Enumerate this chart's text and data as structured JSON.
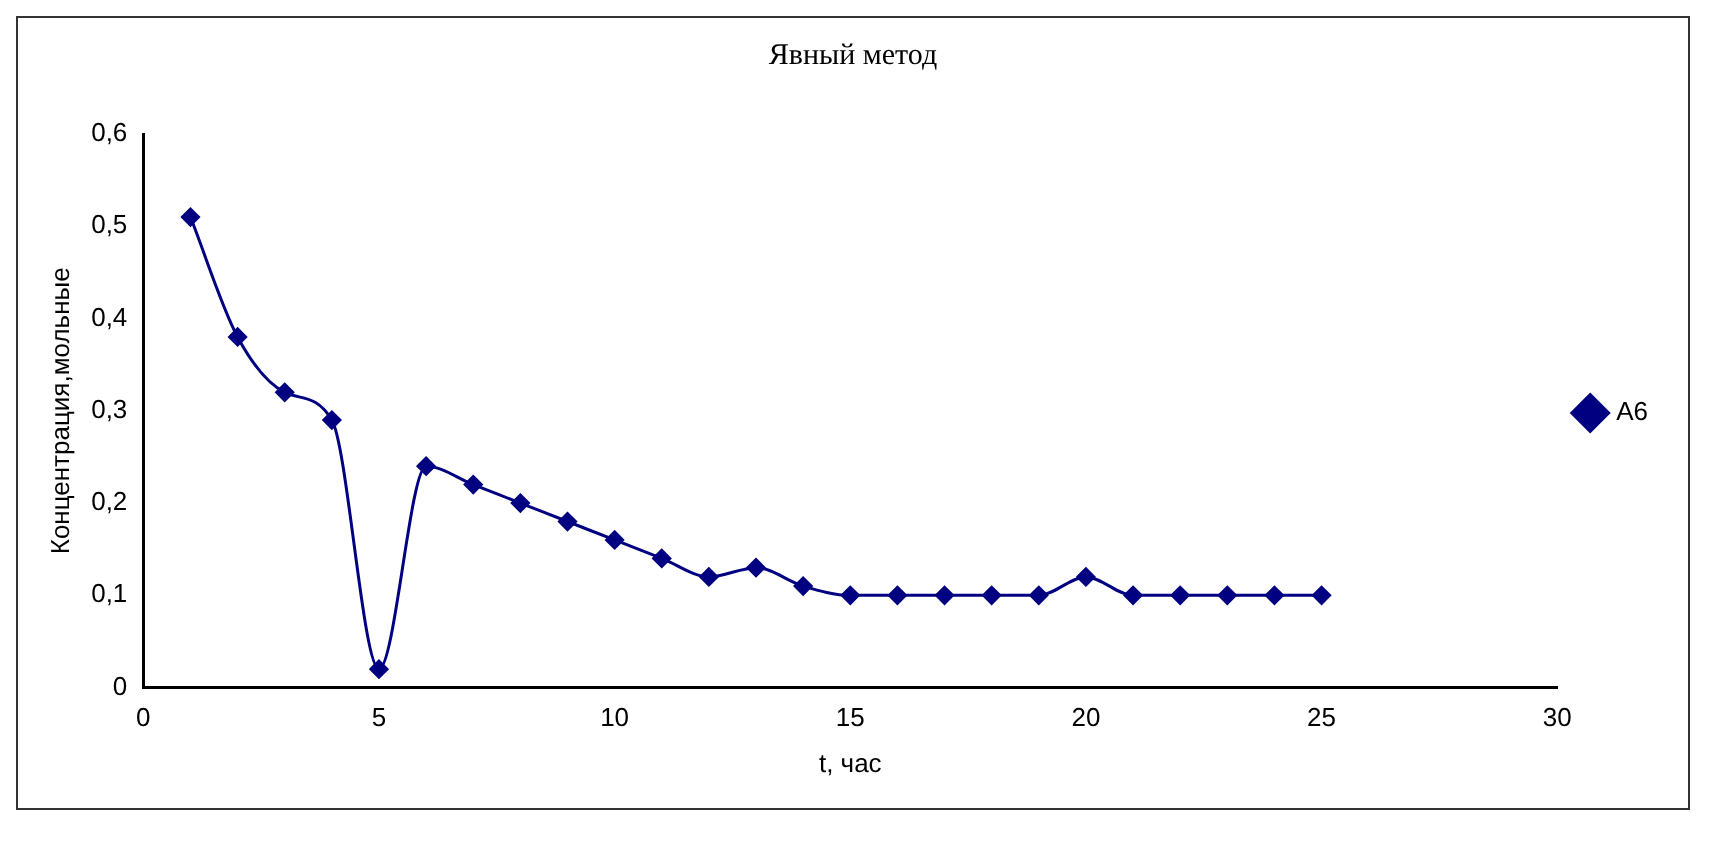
{
  "chart_data": {
    "type": "line",
    "title": "Явный метод",
    "xlabel": "t, час",
    "ylabel": "Концентрация,мольные",
    "x": [
      1,
      2,
      3,
      4,
      5,
      6,
      7,
      8,
      9,
      10,
      11,
      12,
      13,
      14,
      15,
      16,
      17,
      18,
      19,
      20,
      21,
      22,
      23,
      24,
      25
    ],
    "series": [
      {
        "name": "A6",
        "color": "#000080",
        "values": [
          0.51,
          0.38,
          0.32,
          0.29,
          0.02,
          0.24,
          0.22,
          0.2,
          0.18,
          0.16,
          0.14,
          0.12,
          0.13,
          0.11,
          0.1,
          0.1,
          0.1,
          0.1,
          0.1,
          0.12,
          0.1,
          0.1,
          0.1,
          0.1,
          0.1
        ]
      }
    ],
    "xlim": [
      0,
      30
    ],
    "xticks": [
      0,
      5,
      10,
      15,
      20,
      25,
      30
    ],
    "ylim": [
      0,
      0.6
    ],
    "yticks": [
      0,
      {
        "value": 0.1,
        "label": "0,1"
      },
      {
        "value": 0.2,
        "label": "0,2"
      },
      {
        "value": 0.3,
        "label": "0,3"
      },
      {
        "value": 0.4,
        "label": "0,4"
      },
      {
        "value": 0.5,
        "label": "0,5"
      },
      {
        "value": 0.6,
        "label": "0,6"
      }
    ],
    "grid": false,
    "legend": "right",
    "marker": "diamond",
    "line_style": "solid"
  }
}
